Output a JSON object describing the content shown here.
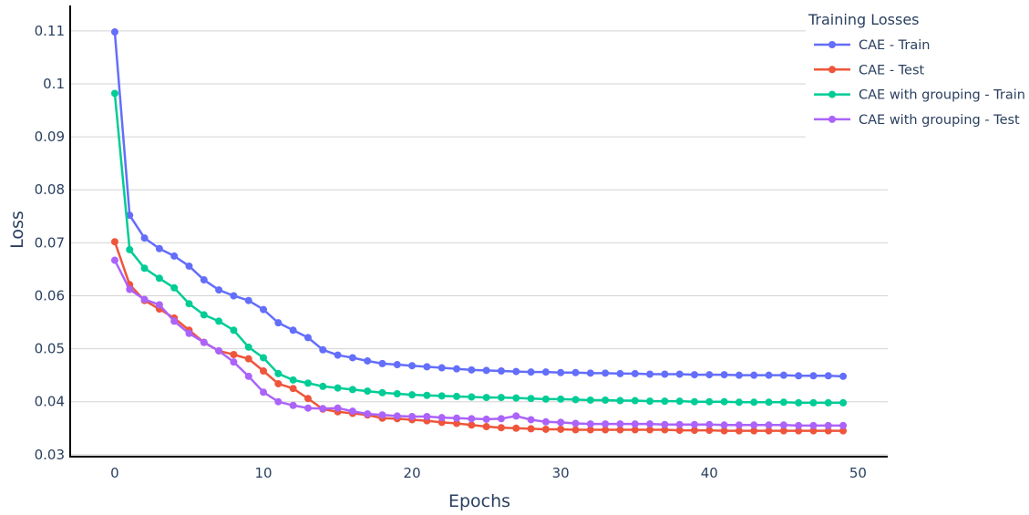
{
  "chart_data": {
    "type": "line",
    "xlabel": "Epochs",
    "ylabel": "Loss",
    "xlim": [
      -3,
      52
    ],
    "ylim": [
      0.0298,
      0.1148
    ],
    "x_ticks": [
      0,
      10,
      20,
      30,
      40,
      50
    ],
    "x_tick_labels": [
      "0",
      "10",
      "20",
      "30",
      "40",
      "50"
    ],
    "y_ticks": [
      0.03,
      0.04,
      0.05,
      0.06,
      0.07,
      0.08,
      0.09,
      0.1,
      0.11
    ],
    "y_tick_labels": [
      "0.03",
      "0.04",
      "0.05",
      "0.06",
      "0.07",
      "0.08",
      "0.09",
      "0.1",
      "0.11"
    ],
    "grid": "horizontal",
    "legend": {
      "title": "Training Losses",
      "position": "top-right"
    },
    "x": [
      0,
      1,
      2,
      3,
      4,
      5,
      6,
      7,
      8,
      9,
      10,
      11,
      12,
      13,
      14,
      15,
      16,
      17,
      18,
      19,
      20,
      21,
      22,
      23,
      24,
      25,
      26,
      27,
      28,
      29,
      30,
      31,
      32,
      33,
      34,
      35,
      36,
      37,
      38,
      39,
      40,
      41,
      42,
      43,
      44,
      45,
      46,
      47,
      48,
      49
    ],
    "series": [
      {
        "name": "CAE - Train",
        "color": "#636efa",
        "values": [
          0.1098,
          0.0752,
          0.0709,
          0.0689,
          0.0675,
          0.0656,
          0.063,
          0.0611,
          0.06,
          0.0591,
          0.0574,
          0.0549,
          0.0535,
          0.0521,
          0.0498,
          0.0488,
          0.0483,
          0.0477,
          0.0472,
          0.047,
          0.0468,
          0.0466,
          0.0464,
          0.0462,
          0.046,
          0.0459,
          0.0458,
          0.0457,
          0.0456,
          0.0456,
          0.0455,
          0.0455,
          0.0454,
          0.0454,
          0.0453,
          0.0453,
          0.0452,
          0.0452,
          0.0452,
          0.0451,
          0.0451,
          0.0451,
          0.045,
          0.045,
          0.045,
          0.045,
          0.0449,
          0.0449,
          0.0449,
          0.0448
        ]
      },
      {
        "name": "CAE - Test",
        "color": "#ef553b",
        "values": [
          0.0702,
          0.0621,
          0.0591,
          0.0575,
          0.0558,
          0.0535,
          0.0512,
          0.0496,
          0.0489,
          0.0481,
          0.0458,
          0.0434,
          0.0425,
          0.0406,
          0.0386,
          0.0381,
          0.0378,
          0.0375,
          0.0369,
          0.0368,
          0.0366,
          0.0364,
          0.0361,
          0.0359,
          0.0356,
          0.0353,
          0.0351,
          0.035,
          0.0349,
          0.0348,
          0.0348,
          0.0347,
          0.0347,
          0.0347,
          0.0347,
          0.0347,
          0.0347,
          0.0347,
          0.0346,
          0.0346,
          0.0346,
          0.0345,
          0.0345,
          0.0345,
          0.0345,
          0.0345,
          0.0345,
          0.0345,
          0.0345,
          0.0345
        ]
      },
      {
        "name": "CAE with grouping - Train",
        "color": "#00cc96",
        "values": [
          0.0982,
          0.0687,
          0.0652,
          0.0633,
          0.0615,
          0.0585,
          0.0564,
          0.0552,
          0.0535,
          0.0503,
          0.0483,
          0.0453,
          0.0441,
          0.0435,
          0.0429,
          0.0426,
          0.0423,
          0.042,
          0.0417,
          0.0415,
          0.0413,
          0.0412,
          0.0411,
          0.041,
          0.0409,
          0.0408,
          0.0408,
          0.0407,
          0.0406,
          0.0405,
          0.0405,
          0.0404,
          0.0403,
          0.0403,
          0.0402,
          0.0402,
          0.0401,
          0.0401,
          0.0401,
          0.04,
          0.04,
          0.04,
          0.0399,
          0.0399,
          0.0399,
          0.0399,
          0.0398,
          0.0398,
          0.0398,
          0.0398
        ]
      },
      {
        "name": "CAE with grouping - Test",
        "color": "#ab63fa",
        "values": [
          0.0667,
          0.0612,
          0.0593,
          0.0583,
          0.0552,
          0.0529,
          0.0512,
          0.0496,
          0.0475,
          0.0448,
          0.0418,
          0.04,
          0.0393,
          0.0388,
          0.0387,
          0.0388,
          0.0382,
          0.0377,
          0.0375,
          0.0373,
          0.0372,
          0.0372,
          0.037,
          0.0369,
          0.0368,
          0.0367,
          0.0368,
          0.0373,
          0.0366,
          0.0362,
          0.0361,
          0.0359,
          0.0358,
          0.0358,
          0.0358,
          0.0358,
          0.0358,
          0.0357,
          0.0357,
          0.0357,
          0.0357,
          0.0356,
          0.0356,
          0.0356,
          0.0356,
          0.0356,
          0.0355,
          0.0355,
          0.0355,
          0.0355
        ]
      }
    ]
  }
}
